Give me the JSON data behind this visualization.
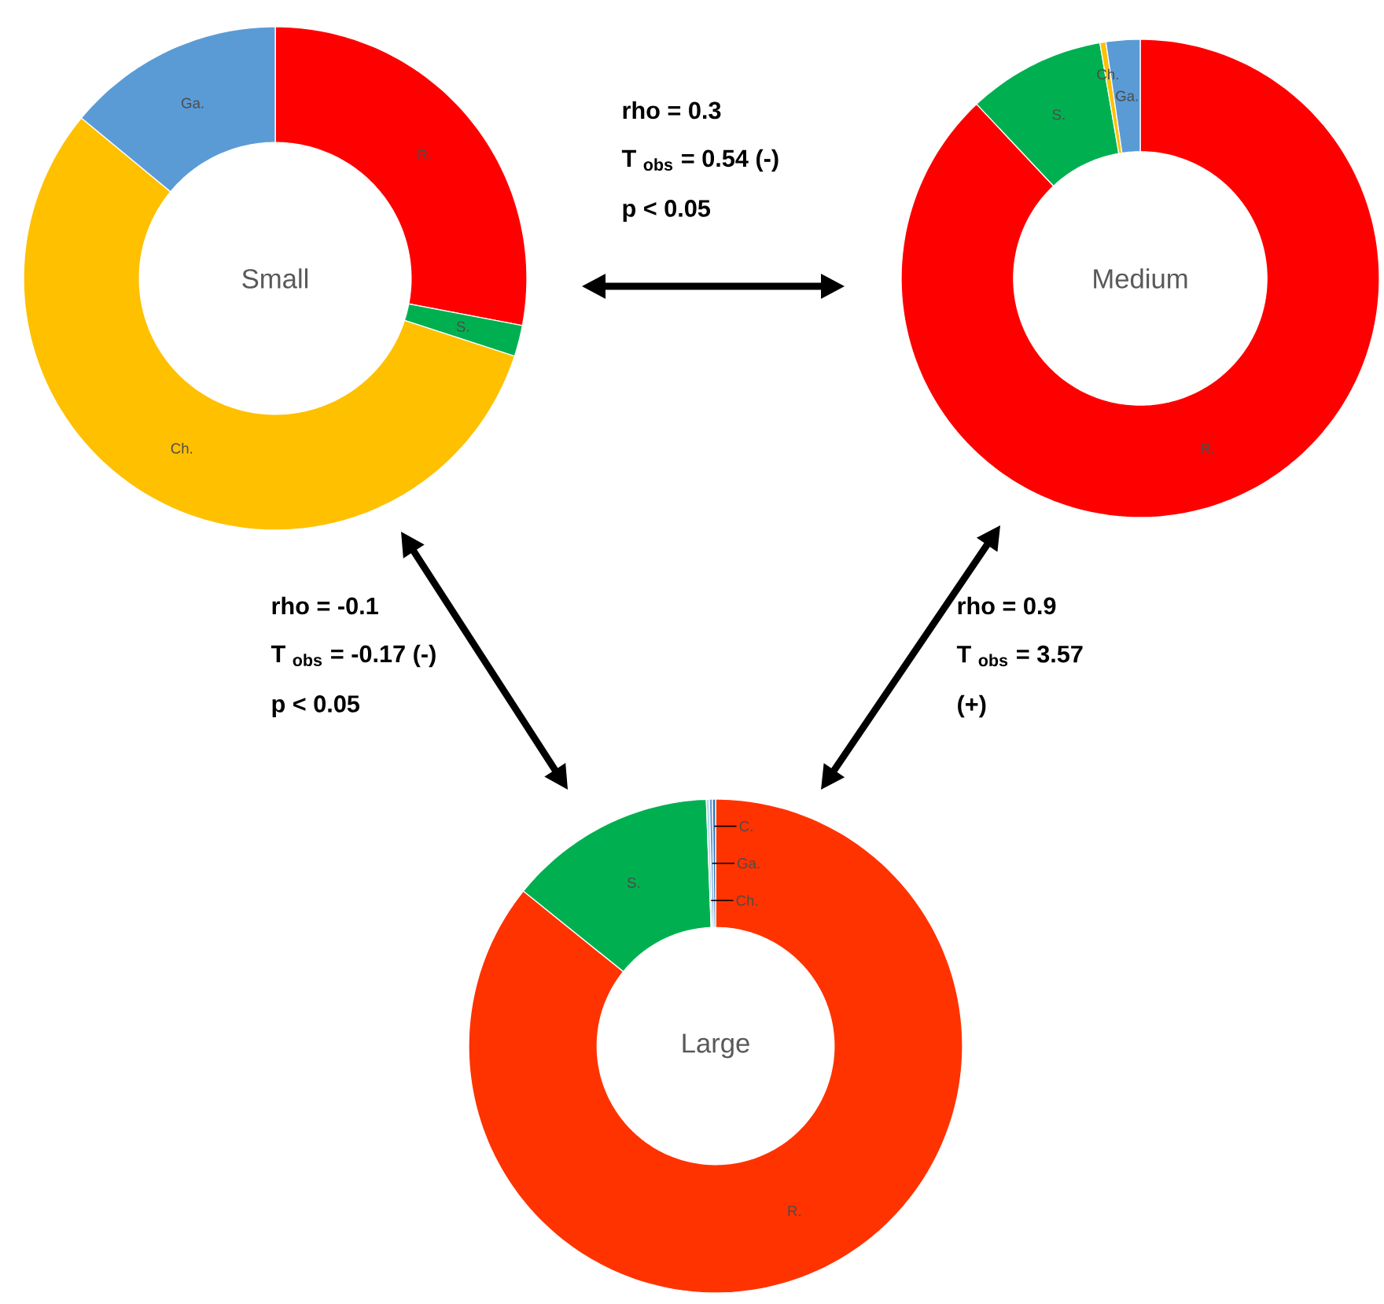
{
  "chart_data": [
    {
      "type": "donut",
      "title": "Small",
      "categories": [
        "R.",
        "S.",
        "Ch.",
        "Ga."
      ],
      "values": [
        28,
        2,
        56,
        14
      ],
      "colors": [
        "#ff0000",
        "#00b050",
        "#ffc000",
        "#5b9bd5"
      ]
    },
    {
      "type": "donut",
      "title": "Medium",
      "categories": [
        "R.",
        "S.",
        "Ch.",
        "Ga."
      ],
      "values": [
        88,
        9.3,
        0.4,
        2.3
      ],
      "colors": [
        "#ff0000",
        "#00b050",
        "#ffc000",
        "#5b9bd5"
      ]
    },
    {
      "type": "donut",
      "title": "Large",
      "categories": [
        "R.",
        "S.",
        "Ch.",
        "Ga.",
        "C."
      ],
      "values": [
        85.8,
        13.6,
        0.2,
        0.2,
        0.2
      ],
      "colors": [
        "#ff3300",
        "#00b050",
        "#bdd7ee",
        "#5b9bd5",
        "#2e75b6"
      ]
    },
    {
      "type": "other",
      "annotations": [
        "rho = 0.3",
        "T $_{obs}$ = 0.54 (-)",
        "p < 0.05",
        "rho = -0.1",
        "T $_{obs}$ = -0.17 (-)",
        "p < 0.05",
        "rho = 0.9",
        "T $_{obs}$ = 3.57",
        "(+)"
      ]
    }
  ]
}
